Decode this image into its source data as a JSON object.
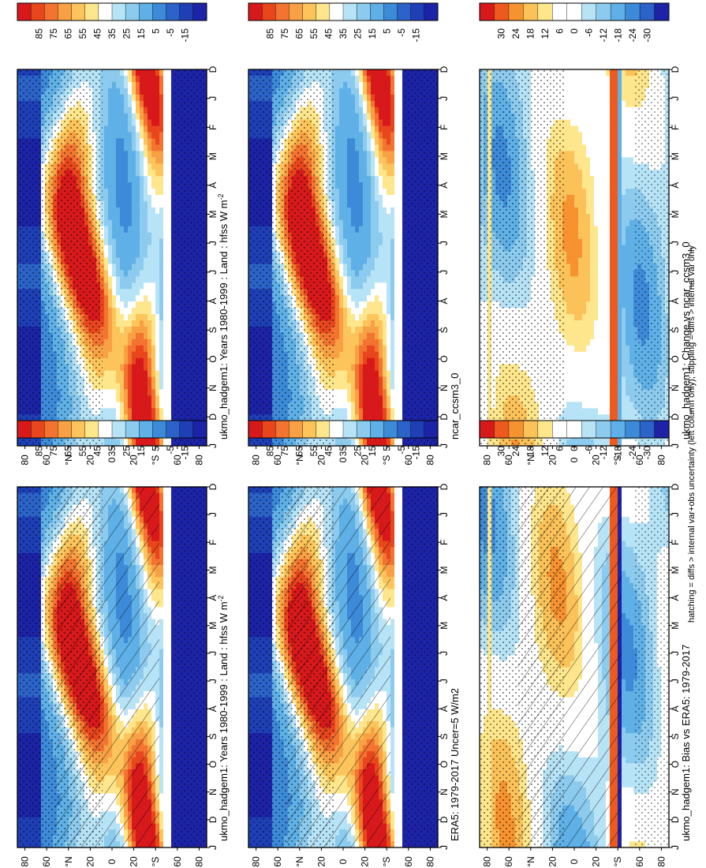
{
  "figure": {
    "footnote": "hatching = diffs > internal var+obs uncertainty (left column only); stippling = diffs > internal var only"
  },
  "chart_data": [
    {
      "type": "heatmap",
      "title": "ukmo_hadgem1: Years 1980-1999 : Land : hfss W m",
      "title_superscript": "-2",
      "xlabel": "",
      "ylabel": "°N / °S",
      "months": [
        "D",
        "J",
        "F",
        "M",
        "A",
        "M",
        "J",
        "J",
        "A",
        "S",
        "O",
        "N",
        "D",
        "J"
      ],
      "lat_ticks": [
        "80",
        "60",
        "°N",
        "20",
        "0",
        "20",
        "°S",
        "60",
        "80"
      ],
      "colorbar": [
        "85",
        "75",
        "65",
        "55",
        "45",
        "35",
        "25",
        "15",
        "5",
        "-5",
        "-15"
      ],
      "scale": "abs",
      "hatching": false,
      "stippling": true
    },
    {
      "type": "heatmap",
      "title": "ukmo_hadgem1: Years 1980-1999 : Land : hfss W m",
      "title_superscript": "-2",
      "xlabel": "",
      "ylabel": "°N / °S",
      "months": [
        "D",
        "J",
        "F",
        "M",
        "A",
        "M",
        "J",
        "J",
        "A",
        "S",
        "O",
        "N",
        "D",
        "J"
      ],
      "lat_ticks": [
        "80",
        "60",
        "°N",
        "20",
        "0",
        "20",
        "°S",
        "60",
        "80"
      ],
      "colorbar": [
        "85",
        "75",
        "65",
        "55",
        "45",
        "35",
        "25",
        "15",
        "5",
        "-5",
        "-15"
      ],
      "scale": "abs",
      "hatching": true,
      "stippling": true
    },
    {
      "type": "heatmap",
      "title": "ncar_ccsm3_0",
      "title_superscript": "",
      "xlabel": "",
      "ylabel": "°N / °S",
      "months": [
        "D",
        "J",
        "F",
        "M",
        "A",
        "M",
        "J",
        "J",
        "A",
        "S",
        "O",
        "N",
        "D",
        "J"
      ],
      "lat_ticks": [
        "80",
        "60",
        "°N",
        "20",
        "0",
        "20",
        "°S",
        "60",
        "80"
      ],
      "colorbar": [
        "85",
        "75",
        "65",
        "55",
        "45",
        "35",
        "25",
        "15",
        "5",
        "-5",
        "-15"
      ],
      "scale": "abs",
      "hatching": false,
      "stippling": true
    },
    {
      "type": "heatmap",
      "title": "ERA5: 1979-2017 Uncer=5 W/m2",
      "title_superscript": "",
      "xlabel": "",
      "ylabel": "°N / °S",
      "months": [
        "D",
        "J",
        "F",
        "M",
        "A",
        "M",
        "J",
        "J",
        "A",
        "S",
        "O",
        "N",
        "D",
        "J"
      ],
      "lat_ticks": [
        "80",
        "60",
        "°N",
        "20",
        "0",
        "20",
        "°S",
        "60",
        "80"
      ],
      "colorbar": [
        "85",
        "75",
        "65",
        "55",
        "45",
        "35",
        "25",
        "15",
        "5",
        "-5",
        "-15"
      ],
      "scale": "abs",
      "hatching": true,
      "stippling": true
    },
    {
      "type": "heatmap",
      "title": "ukmo_hadgem1: Change vs ncar_ccsm3_0",
      "title_superscript": "",
      "xlabel": "",
      "ylabel": "°N / °S",
      "months": [
        "D",
        "J",
        "F",
        "M",
        "A",
        "M",
        "J",
        "J",
        "A",
        "S",
        "O",
        "N",
        "D",
        "J"
      ],
      "lat_ticks": [
        "80",
        "60",
        "°N",
        "20",
        "0",
        "20",
        "°S",
        "60",
        "80"
      ],
      "colorbar": [
        "30",
        "24",
        "18",
        "12",
        "6",
        "0",
        "-6",
        "-12",
        "-18",
        "-24",
        "-30"
      ],
      "scale": "diff",
      "hatching": false,
      "stippling": true
    },
    {
      "type": "heatmap",
      "title": "ukmo_hadgem1: Bias vs ERA5: 1979-2017",
      "title_superscript": "",
      "xlabel": "",
      "ylabel": "°N / °S",
      "months": [
        "D",
        "J",
        "F",
        "M",
        "A",
        "M",
        "J",
        "J",
        "A",
        "S",
        "O",
        "N",
        "D",
        "J"
      ],
      "lat_ticks": [
        "80",
        "60",
        "°N",
        "20",
        "0",
        "20",
        "°S",
        "60",
        "80"
      ],
      "colorbar": [
        "30",
        "24",
        "18",
        "12",
        "6",
        "0",
        "-6",
        "-12",
        "-18",
        "-24",
        "-30"
      ],
      "scale": "diff",
      "hatching": true,
      "stippling": true
    }
  ]
}
